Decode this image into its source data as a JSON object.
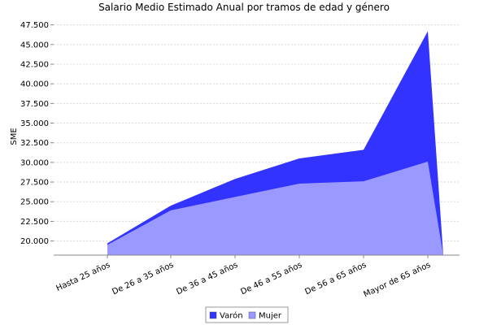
{
  "chart_data": {
    "type": "area",
    "title": "Salario Medio Estimado Anual por tramos de edad y género",
    "xlabel": "",
    "ylabel": "SME",
    "categories": [
      "Hasta 25  años",
      "De 26  a 35  años",
      "De 36  a 45  años",
      "De 46  a 55  años",
      "De 56  a 65  años",
      "Mayor de 65  años"
    ],
    "y_ticks": [
      "20.000",
      "22.500",
      "25.000",
      "27.500",
      "30.000",
      "32.500",
      "35.000",
      "37.500",
      "40.000",
      "42.500",
      "45.000",
      "47.500"
    ],
    "ylim": [
      18200,
      48600
    ],
    "series": [
      {
        "name": "Varón",
        "color": "#3333ff",
        "values": [
          19700,
          24500,
          27900,
          30500,
          31600,
          46700
        ]
      },
      {
        "name": "Mujer",
        "color": "#9999ff",
        "values": [
          19500,
          23900,
          25600,
          27300,
          27600,
          30100
        ]
      }
    ],
    "grid": true,
    "legend_position": "bottom"
  }
}
